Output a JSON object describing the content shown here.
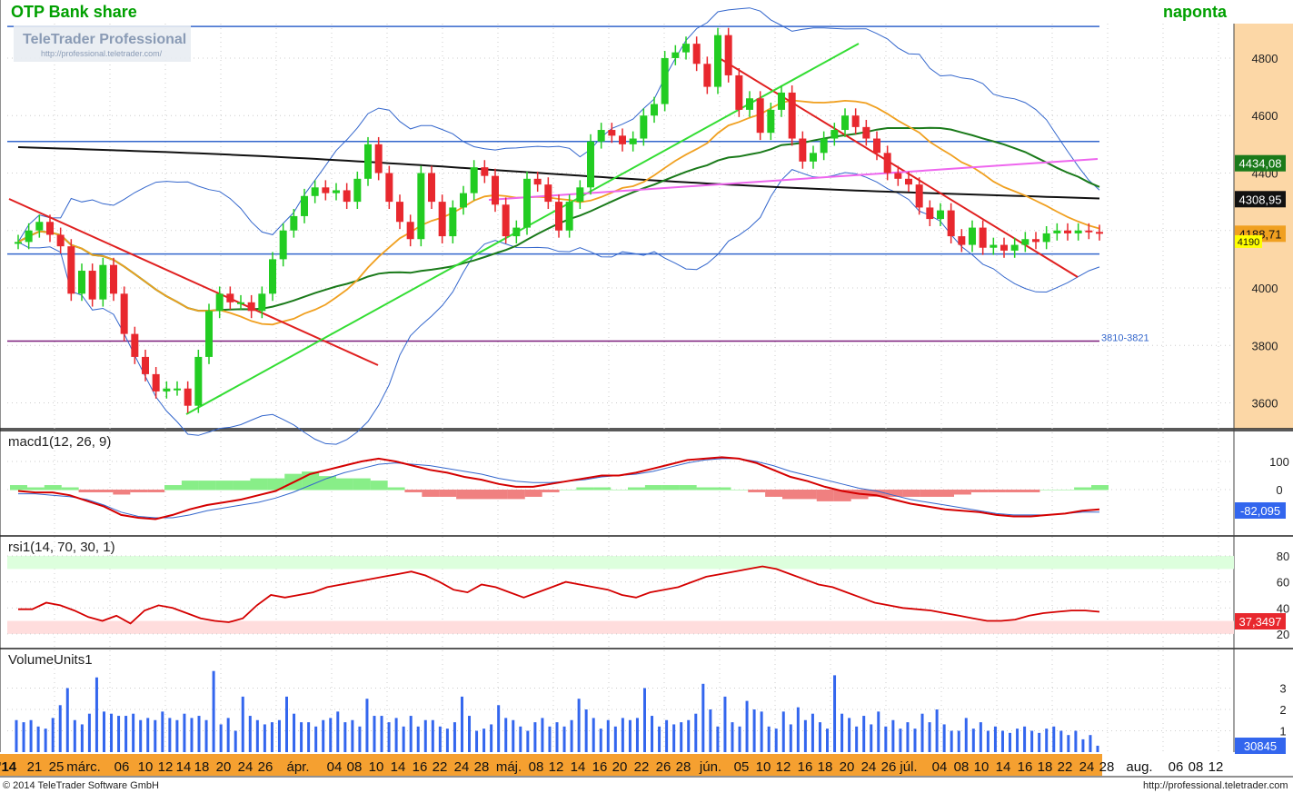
{
  "header": {
    "title": "OTP Bank share",
    "period": "naponta"
  },
  "watermark": {
    "brand": "TeleTrader Professional",
    "url": "http://professional.teletrader.com/"
  },
  "footer": {
    "copyright": "© 2014 TeleTrader Software GmbH",
    "url": "http://professional.teletrader.com"
  },
  "colors": {
    "accent": "#00b000",
    "up": "#22cc22",
    "down": "#e8282e",
    "axis_bg": "#fcd7a6",
    "date_bar": "#f5a030"
  },
  "chart_data": [
    {
      "type": "candlestick",
      "title": "OTP Bank share",
      "ylim": [
        3510,
        4920
      ],
      "y_ticks": [
        3600,
        3800,
        4000,
        4200,
        4400,
        4600,
        4800
      ],
      "x_labels": [
        "'14",
        "21",
        "25",
        "márc.",
        "06",
        "10",
        "12",
        "14",
        "18",
        "20",
        "24",
        "26",
        "ápr.",
        "04",
        "08",
        "10",
        "14",
        "16",
        "22",
        "24",
        "28",
        "máj.",
        "08",
        "12",
        "14",
        "16",
        "20",
        "22",
        "26",
        "28",
        "jún.",
        "05",
        "10",
        "12",
        "16",
        "18",
        "20",
        "24",
        "26",
        "júl.",
        "04",
        "08",
        "10",
        "14",
        "16",
        "18",
        "22",
        "24",
        "28",
        "aug.",
        "06",
        "08",
        "12"
      ],
      "close": [
        4160,
        4200,
        4230,
        4185,
        4145,
        3980,
        4060,
        3960,
        4080,
        3980,
        3840,
        3760,
        3700,
        3640,
        3650,
        3650,
        3590,
        3760,
        3920,
        3980,
        3950,
        3950,
        3920,
        3980,
        4100,
        4200,
        4250,
        4320,
        4350,
        4330,
        4340,
        4300,
        4380,
        4500,
        4400,
        4300,
        4230,
        4170,
        4400,
        4300,
        4180,
        4280,
        4330,
        4420,
        4390,
        4290,
        4180,
        4210,
        4380,
        4360,
        4300,
        4200,
        4300,
        4350,
        4510,
        4550,
        4530,
        4500,
        4520,
        4600,
        4640,
        4800,
        4820,
        4850,
        4780,
        4700,
        4880,
        4740,
        4620,
        4660,
        4540,
        4620,
        4680,
        4520,
        4440,
        4470,
        4520,
        4550,
        4600,
        4560,
        4520,
        4470,
        4400,
        4380,
        4360,
        4280,
        4240,
        4270,
        4180,
        4150,
        4210,
        4140,
        4150,
        4130,
        4150,
        4170,
        4160,
        4190,
        4200,
        4190,
        4200,
        4195,
        4190
      ],
      "bollinger_upper_start": 4420,
      "moving_averages": [
        {
          "name": "MA 200",
          "color": "#111111",
          "last": 4308.95
        },
        {
          "name": "MA 50",
          "color": "#1a7a1a",
          "last": 4434.08
        },
        {
          "name": "MA 20",
          "color": "#f0a020",
          "last": 4188.71
        }
      ],
      "last_price": 4190,
      "horizontal_lines": [
        {
          "price": 4910,
          "color": "#3366cc"
        },
        {
          "price": 4510,
          "color": "#3366cc"
        },
        {
          "price": 4118,
          "color": "#3366cc"
        },
        {
          "price": 3815,
          "color": "#7a1a7a",
          "label": "3810-3821"
        }
      ]
    },
    {
      "type": "line",
      "title": "macd1(12, 26, 9)",
      "y_ticks": [
        100,
        0
      ],
      "last": "-82,095",
      "series": [
        {
          "color": "#d40000",
          "values": [
            -5,
            -10,
            -10,
            -20,
            -40,
            -60,
            -90,
            -100,
            -105,
            -90,
            -70,
            -55,
            -45,
            -35,
            -20,
            -5,
            25,
            55,
            70,
            85,
            100,
            110,
            100,
            85,
            70,
            60,
            45,
            35,
            20,
            10,
            10,
            20,
            30,
            40,
            50,
            50,
            60,
            75,
            90,
            105,
            110,
            115,
            110,
            95,
            70,
            45,
            30,
            10,
            -5,
            -15,
            -20,
            -35,
            -50,
            -60,
            -70,
            -75,
            -80,
            -90,
            -95,
            -95,
            -90,
            -85,
            -75,
            -70
          ]
        },
        {
          "color": "#3366cc",
          "values": [
            -15,
            -15,
            -20,
            -25,
            -35,
            -55,
            -80,
            -95,
            -100,
            -100,
            -90,
            -75,
            -65,
            -55,
            -45,
            -30,
            -10,
            15,
            40,
            60,
            75,
            90,
            95,
            90,
            85,
            75,
            65,
            55,
            40,
            30,
            25,
            25,
            30,
            35,
            45,
            50,
            55,
            65,
            80,
            95,
            105,
            110,
            110,
            100,
            85,
            65,
            50,
            35,
            20,
            5,
            -5,
            -20,
            -35,
            -45,
            -55,
            -65,
            -75,
            -85,
            -90,
            -90,
            -90,
            -85,
            -80,
            -80
          ]
        }
      ]
    },
    {
      "type": "line",
      "title": "rsi1(14, 70, 30, 1)",
      "y_ticks": [
        80,
        60,
        40,
        20
      ],
      "last": "37,3497",
      "values": [
        39,
        39,
        44,
        42,
        38,
        33,
        30,
        34,
        28,
        38,
        42,
        40,
        36,
        32,
        30,
        29,
        32,
        42,
        50,
        48,
        50,
        52,
        56,
        58,
        60,
        62,
        64,
        66,
        68,
        65,
        60,
        54,
        52,
        58,
        56,
        52,
        48,
        52,
        56,
        60,
        58,
        56,
        54,
        50,
        48,
        52,
        54,
        56,
        60,
        64,
        66,
        68,
        70,
        72,
        70,
        66,
        62,
        58,
        56,
        52,
        48,
        44,
        42,
        40,
        39,
        38,
        36,
        34,
        32,
        30,
        30,
        31,
        34,
        36,
        37,
        38,
        38,
        37
      ],
      "zones": [
        {
          "from": 70,
          "to": 80,
          "color": "#ddffdd"
        },
        {
          "from": 20,
          "to": 30,
          "color": "#ffdddd"
        }
      ]
    },
    {
      "type": "bar",
      "title": "VolumeUnits1",
      "y_ticks": [
        3,
        2,
        1
      ],
      "last": "30845",
      "values": [
        1.5,
        1.4,
        1.5,
        1.2,
        1.1,
        1.6,
        2.2,
        3.0,
        1.5,
        1.3,
        1.8,
        3.5,
        1.9,
        1.8,
        1.7,
        1.7,
        1.8,
        1.5,
        1.6,
        1.5,
        1.9,
        1.6,
        1.5,
        1.8,
        1.6,
        1.7,
        1.5,
        3.8,
        1.3,
        1.6,
        1.0,
        2.6,
        1.7,
        1.5,
        1.3,
        1.4,
        1.5,
        2.6,
        1.8,
        1.4,
        1.4,
        1.2,
        1.5,
        1.6,
        1.9,
        1.4,
        1.5,
        1.2,
        2.5,
        1.7,
        1.7,
        1.4,
        1.6,
        1.2,
        1.7,
        1.2,
        1.5,
        1.5,
        1.2,
        1.1,
        1.4,
        2.6,
        1.7,
        1.0,
        1.1,
        1.3,
        2.2,
        1.6,
        1.5,
        1.2,
        1.0,
        1.4,
        1.6,
        1.2,
        1.4,
        1.2,
        1.5,
        2.5,
        2.0,
        1.6,
        1.1,
        1.5,
        1.2,
        1.6,
        1.5,
        1.6,
        3.0,
        1.7,
        1.2,
        1.5,
        1.3,
        1.4,
        1.5,
        1.8,
        3.2,
        2.0,
        1.2,
        2.6,
        1.4,
        1.2,
        2.4,
        2.0,
        1.9,
        1.2,
        1.1,
        1.9,
        1.3,
        2.1,
        1.5,
        1.8,
        1.4,
        1.1,
        3.6,
        1.8,
        1.6,
        1.2,
        1.7,
        1.3,
        1.9,
        1.2,
        1.5,
        1.1,
        1.4,
        1.1,
        1.8,
        1.4,
        2.0,
        1.3,
        1.0,
        1.0,
        1.6,
        1.1,
        1.4,
        1.0,
        1.2,
        1.0,
        0.9,
        1.1,
        1.2,
        1.0,
        0.9,
        1.1,
        1.2,
        1.0,
        0.8,
        1.0,
        0.6,
        0.8,
        0.3
      ]
    }
  ]
}
